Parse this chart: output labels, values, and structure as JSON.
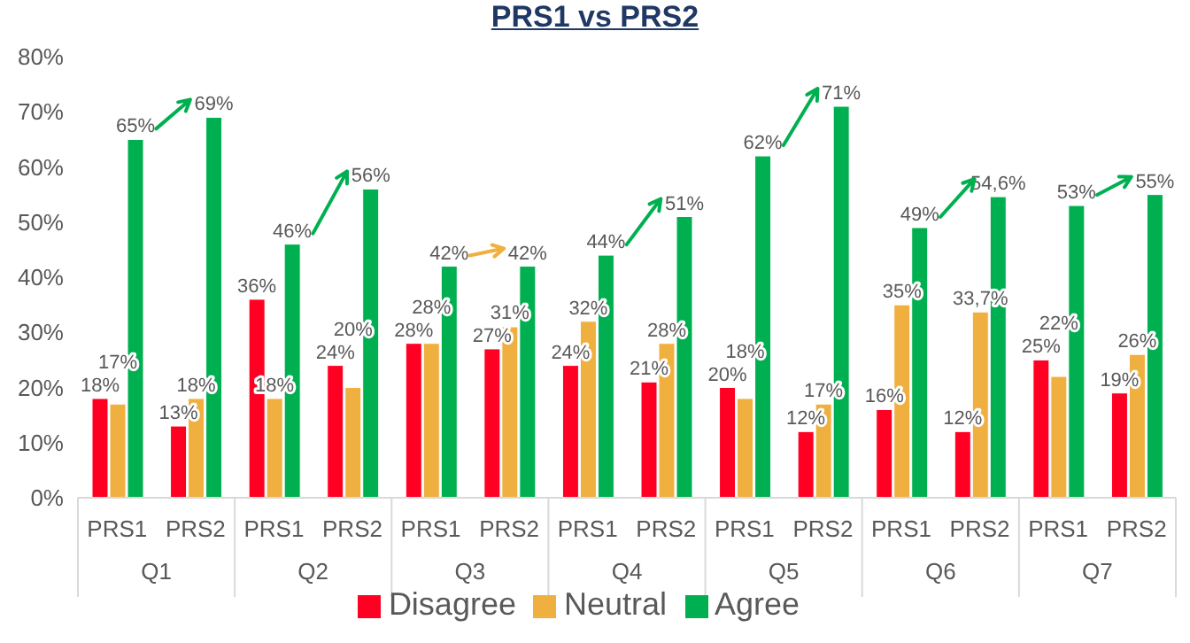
{
  "chart_data": {
    "type": "bar",
    "title": "PRS1 vs PRS2",
    "categories": [
      "PRS1",
      "PRS2",
      "PRS1",
      "PRS2",
      "PRS1",
      "PRS2",
      "PRS1",
      "PRS2",
      "PRS1",
      "PRS2",
      "PRS1",
      "PRS2",
      "PRS1",
      "PRS2"
    ],
    "annotations": [
      "Q1",
      "Q2",
      "Q3",
      "Q4",
      "Q5",
      "Q6",
      "Q7"
    ],
    "series": [
      {
        "name": "Disagree",
        "color": "#ff0022",
        "values": [
          18,
          13,
          36,
          24,
          28,
          27,
          24,
          21,
          20,
          12,
          16,
          12,
          25,
          19
        ],
        "value_labels": [
          "18%",
          "13%",
          "36%",
          "24%",
          "28%",
          "27%",
          "24%",
          "21%",
          "20%",
          "12%",
          "16%",
          "12%",
          "25%",
          "19%"
        ]
      },
      {
        "name": "Neutral",
        "color": "#f0b040",
        "values": [
          17,
          18,
          18,
          20,
          28,
          31,
          32,
          28,
          18,
          17,
          35,
          33.7,
          22,
          26
        ],
        "value_labels": [
          "17%",
          "18%",
          "18%",
          "20%",
          "28%",
          "31%",
          "32%",
          "28%",
          "18%",
          "17%",
          "35%",
          "33,7%",
          "22%",
          "26%"
        ]
      },
      {
        "name": "Agree",
        "color": "#00b050",
        "values": [
          65,
          69,
          46,
          56,
          42,
          42,
          44,
          51,
          62,
          71,
          49,
          54.6,
          53,
          55
        ],
        "value_labels": [
          "65%",
          "69%",
          "46%",
          "56%",
          "42%",
          "42%",
          "44%",
          "51%",
          "62%",
          "71%",
          "49%",
          "54,6%",
          "53%",
          "55%"
        ]
      }
    ],
    "ylim": [
      0,
      80
    ],
    "yticks": [
      {
        "value": 0,
        "label": "0%"
      },
      {
        "value": 10,
        "label": "10%"
      },
      {
        "value": 20,
        "label": "20%"
      },
      {
        "value": 30,
        "label": "30%"
      },
      {
        "value": 40,
        "label": "40%"
      },
      {
        "value": 50,
        "label": "50%"
      },
      {
        "value": 60,
        "label": "60%"
      },
      {
        "value": 70,
        "label": "70%"
      },
      {
        "value": 80,
        "label": "80%"
      }
    ],
    "grid": false,
    "legend": "bottom"
  }
}
